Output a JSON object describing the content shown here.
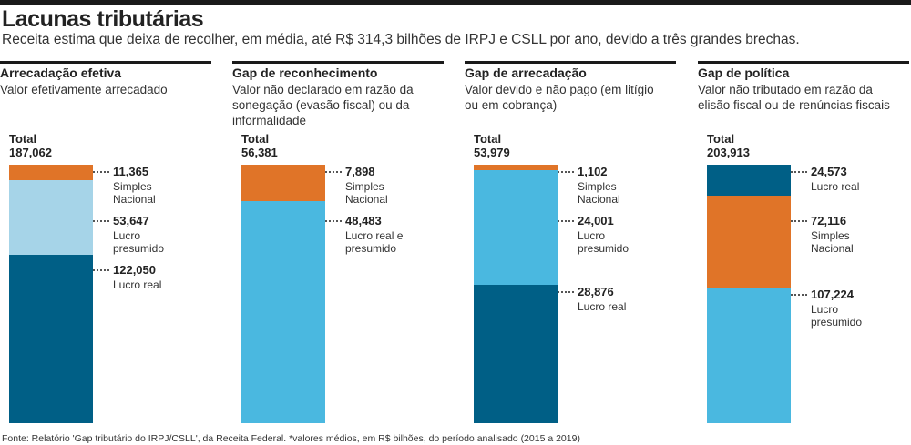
{
  "title": "Lacunas tributárias",
  "subtitle": "Receita estima que deixa de recolher, em média, até R$ 314,3 bilhões de IRPJ e CSLL por ano, devido a três grandes brechas.",
  "source": "Fonte: Relatório 'Gap tributário do IRPJ/CSLL', da Receita Federal. *valores médios, em R$ bilhões, do período analisado (2015 a 2019)",
  "chart_data": [
    {
      "type": "bar",
      "stacked": true,
      "title": "Arrecadação efetiva",
      "subtitle": "Valor efetivamente arrecadado",
      "total_title": "Total",
      "total": 187.062,
      "total_label": "187,062",
      "series": [
        {
          "name": "Simples Nacional",
          "color": "#e07428",
          "values": [
            11.365
          ],
          "value_labels": [
            "11,365"
          ]
        },
        {
          "name": "Lucro presumido",
          "color": "#a6d4e8",
          "values": [
            53.647
          ],
          "value_labels": [
            "53,647"
          ]
        },
        {
          "name": "Lucro real",
          "color": "#005f86",
          "values": [
            122.05
          ],
          "value_labels": [
            "122,050"
          ]
        }
      ]
    },
    {
      "type": "bar",
      "stacked": true,
      "title": "Gap de reconhecimento",
      "subtitle": "Valor não declarado em razão da sonegação (evasão fiscal) ou da informalidade",
      "total_title": "Total",
      "total": 56.381,
      "total_label": "56,381",
      "series": [
        {
          "name": "Simples Nacional",
          "color": "#e07428",
          "values": [
            7.898
          ],
          "value_labels": [
            "7,898"
          ]
        },
        {
          "name": "Lucro real e presumido",
          "color": "#4ab8e0",
          "values": [
            48.483
          ],
          "value_labels": [
            "48,483"
          ]
        }
      ]
    },
    {
      "type": "bar",
      "stacked": true,
      "title": "Gap de arrecadação",
      "subtitle": "Valor devido e não pago (em litígio ou em cobrança)",
      "total_title": "Total",
      "total": 53.979,
      "total_label": "53,979",
      "series": [
        {
          "name": "Simples Nacional",
          "color": "#e07428",
          "values": [
            1.102
          ],
          "value_labels": [
            "1,102"
          ]
        },
        {
          "name": "Lucro presumido",
          "color": "#4ab8e0",
          "values": [
            24.001
          ],
          "value_labels": [
            "24,001"
          ]
        },
        {
          "name": "Lucro real",
          "color": "#005f86",
          "values": [
            28.876
          ],
          "value_labels": [
            "28,876"
          ]
        }
      ]
    },
    {
      "type": "bar",
      "stacked": true,
      "title": "Gap de política",
      "subtitle": "Valor não tributado em razão da elisão fiscal ou de renúncias fiscais",
      "total_title": "Total",
      "total": 203.913,
      "total_label": "203,913",
      "series": [
        {
          "name": "Lucro real",
          "color": "#005f86",
          "values": [
            24.573
          ],
          "value_labels": [
            "24,573"
          ]
        },
        {
          "name": "Simples Nacional",
          "color": "#e07428",
          "values": [
            72.116
          ],
          "value_labels": [
            "72,116"
          ]
        },
        {
          "name": "Lucro presumido",
          "color": "#4ab8e0",
          "values": [
            107.224
          ],
          "value_labels": [
            "107,224"
          ]
        }
      ]
    }
  ]
}
